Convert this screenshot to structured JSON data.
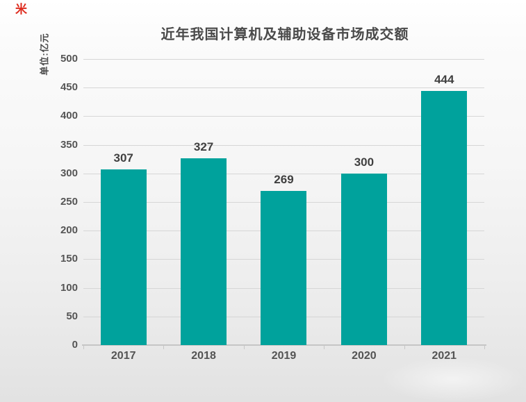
{
  "logo": {
    "glyph": "米",
    "color": "#de2c1f"
  },
  "chart_data": {
    "type": "bar",
    "title": "近年我国计算机及辅助设备市场成交额",
    "unit_label": "单位:亿元",
    "categories": [
      "2017",
      "2018",
      "2019",
      "2020",
      "2021"
    ],
    "values": [
      307,
      327,
      269,
      300,
      444
    ],
    "xlabel": "",
    "ylabel": "单位:亿元",
    "ylim": [
      0,
      500
    ],
    "ytick_step": 50,
    "yticks": [
      0,
      50,
      100,
      150,
      200,
      250,
      300,
      350,
      400,
      450,
      500
    ],
    "grid": true,
    "legend": "none",
    "bar_color": "#00a29c",
    "title_color": "#4a4a4a",
    "label_color": "#404040",
    "tick_color": "#555555",
    "grid_color": "#d6d6d6",
    "axis_color": "#c6c6c6"
  }
}
